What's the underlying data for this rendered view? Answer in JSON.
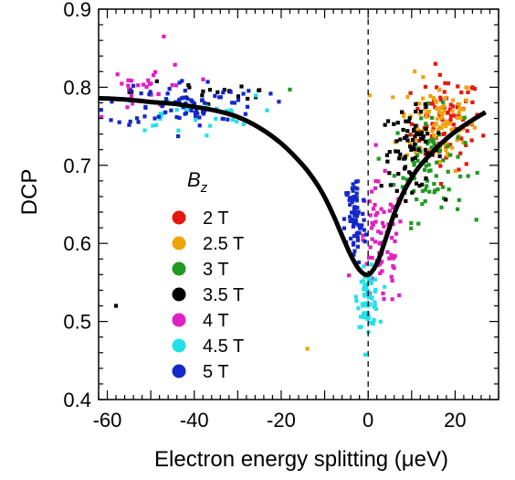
{
  "chart_data": {
    "type": "scatter",
    "xlabel": "Electron energy splitting (μeV)",
    "ylabel": "DCP",
    "xlim": [
      -62,
      30
    ],
    "ylim": [
      0.4,
      0.9
    ],
    "x_ticks": [
      "-60",
      "-40",
      "-20",
      "0",
      "20"
    ],
    "y_ticks": [
      "0.4",
      "0.5",
      "0.6",
      "0.7",
      "0.8",
      "0.9"
    ],
    "legend": {
      "title": "B",
      "title_sub": "z",
      "placement": "center-left"
    },
    "grid": false,
    "reference_line": {
      "x": 0,
      "style": "dashed"
    },
    "fit_curve": {
      "color": "#000000",
      "points": [
        [
          -62,
          0.786
        ],
        [
          -55,
          0.784
        ],
        [
          -50,
          0.781
        ],
        [
          -45,
          0.779
        ],
        [
          -40,
          0.775
        ],
        [
          -35,
          0.77
        ],
        [
          -30,
          0.762
        ],
        [
          -25,
          0.748
        ],
        [
          -20,
          0.728
        ],
        [
          -15,
          0.7
        ],
        [
          -12,
          0.678
        ],
        [
          -10,
          0.659
        ],
        [
          -8,
          0.636
        ],
        [
          -6,
          0.61
        ],
        [
          -4,
          0.585
        ],
        [
          -2,
          0.566
        ],
        [
          0,
          0.56
        ],
        [
          2,
          0.574
        ],
        [
          4,
          0.605
        ],
        [
          6,
          0.638
        ],
        [
          8,
          0.664
        ],
        [
          10,
          0.684
        ],
        [
          12,
          0.7
        ],
        [
          15,
          0.718
        ],
        [
          18,
          0.734
        ],
        [
          21,
          0.747
        ],
        [
          24,
          0.758
        ],
        [
          27,
          0.768
        ]
      ]
    },
    "series": [
      {
        "name": "2 T",
        "color": "#e8170f",
        "clusters": [
          {
            "cx": 18,
            "cy": 0.755,
            "sx": 4,
            "sy": 0.03,
            "n": 90
          }
        ],
        "extra_points": []
      },
      {
        "name": "2.5 T",
        "color": "#f0a30a",
        "clusters": [
          {
            "cx": 16,
            "cy": 0.755,
            "sx": 4.5,
            "sy": 0.03,
            "n": 90
          }
        ],
        "extra_points": [
          [
            -14,
            0.465
          ]
        ]
      },
      {
        "name": "3 T",
        "color": "#1f9a1f",
        "clusters": [
          {
            "cx": 14,
            "cy": 0.7,
            "sx": 4,
            "sy": 0.035,
            "n": 80
          }
        ],
        "extra_points": [
          [
            -18,
            0.797
          ]
        ]
      },
      {
        "name": "3.5 T",
        "color": "#000000",
        "clusters": [
          {
            "cx": 10,
            "cy": 0.72,
            "sx": 3.5,
            "sy": 0.025,
            "n": 80
          },
          {
            "cx": -36,
            "cy": 0.795,
            "sx": 9,
            "sy": 0.015,
            "n": 22
          }
        ],
        "extra_points": [
          [
            -58,
            0.52
          ]
        ]
      },
      {
        "name": "4 T",
        "color": "#e020c0",
        "clusters": [
          {
            "cx": 3,
            "cy": 0.595,
            "sx": 2.8,
            "sy": 0.04,
            "n": 80
          },
          {
            "cx": -50,
            "cy": 0.8,
            "sx": 5,
            "sy": 0.015,
            "n": 30
          }
        ],
        "extra_points": [
          [
            -47,
            0.865
          ]
        ]
      },
      {
        "name": "4.5 T",
        "color": "#22e0e8",
        "clusters": [
          {
            "cx": 0,
            "cy": 0.53,
            "sx": 1.2,
            "sy": 0.018,
            "n": 70
          },
          {
            "cx": -42,
            "cy": 0.765,
            "sx": 8,
            "sy": 0.012,
            "n": 30
          }
        ],
        "extra_points": []
      },
      {
        "name": "5 T",
        "color": "#1428c8",
        "clusters": [
          {
            "cx": -3,
            "cy": 0.63,
            "sx": 1.2,
            "sy": 0.03,
            "n": 75
          },
          {
            "cx": -42,
            "cy": 0.78,
            "sx": 9,
            "sy": 0.015,
            "n": 80
          }
        ],
        "extra_points": []
      }
    ]
  }
}
